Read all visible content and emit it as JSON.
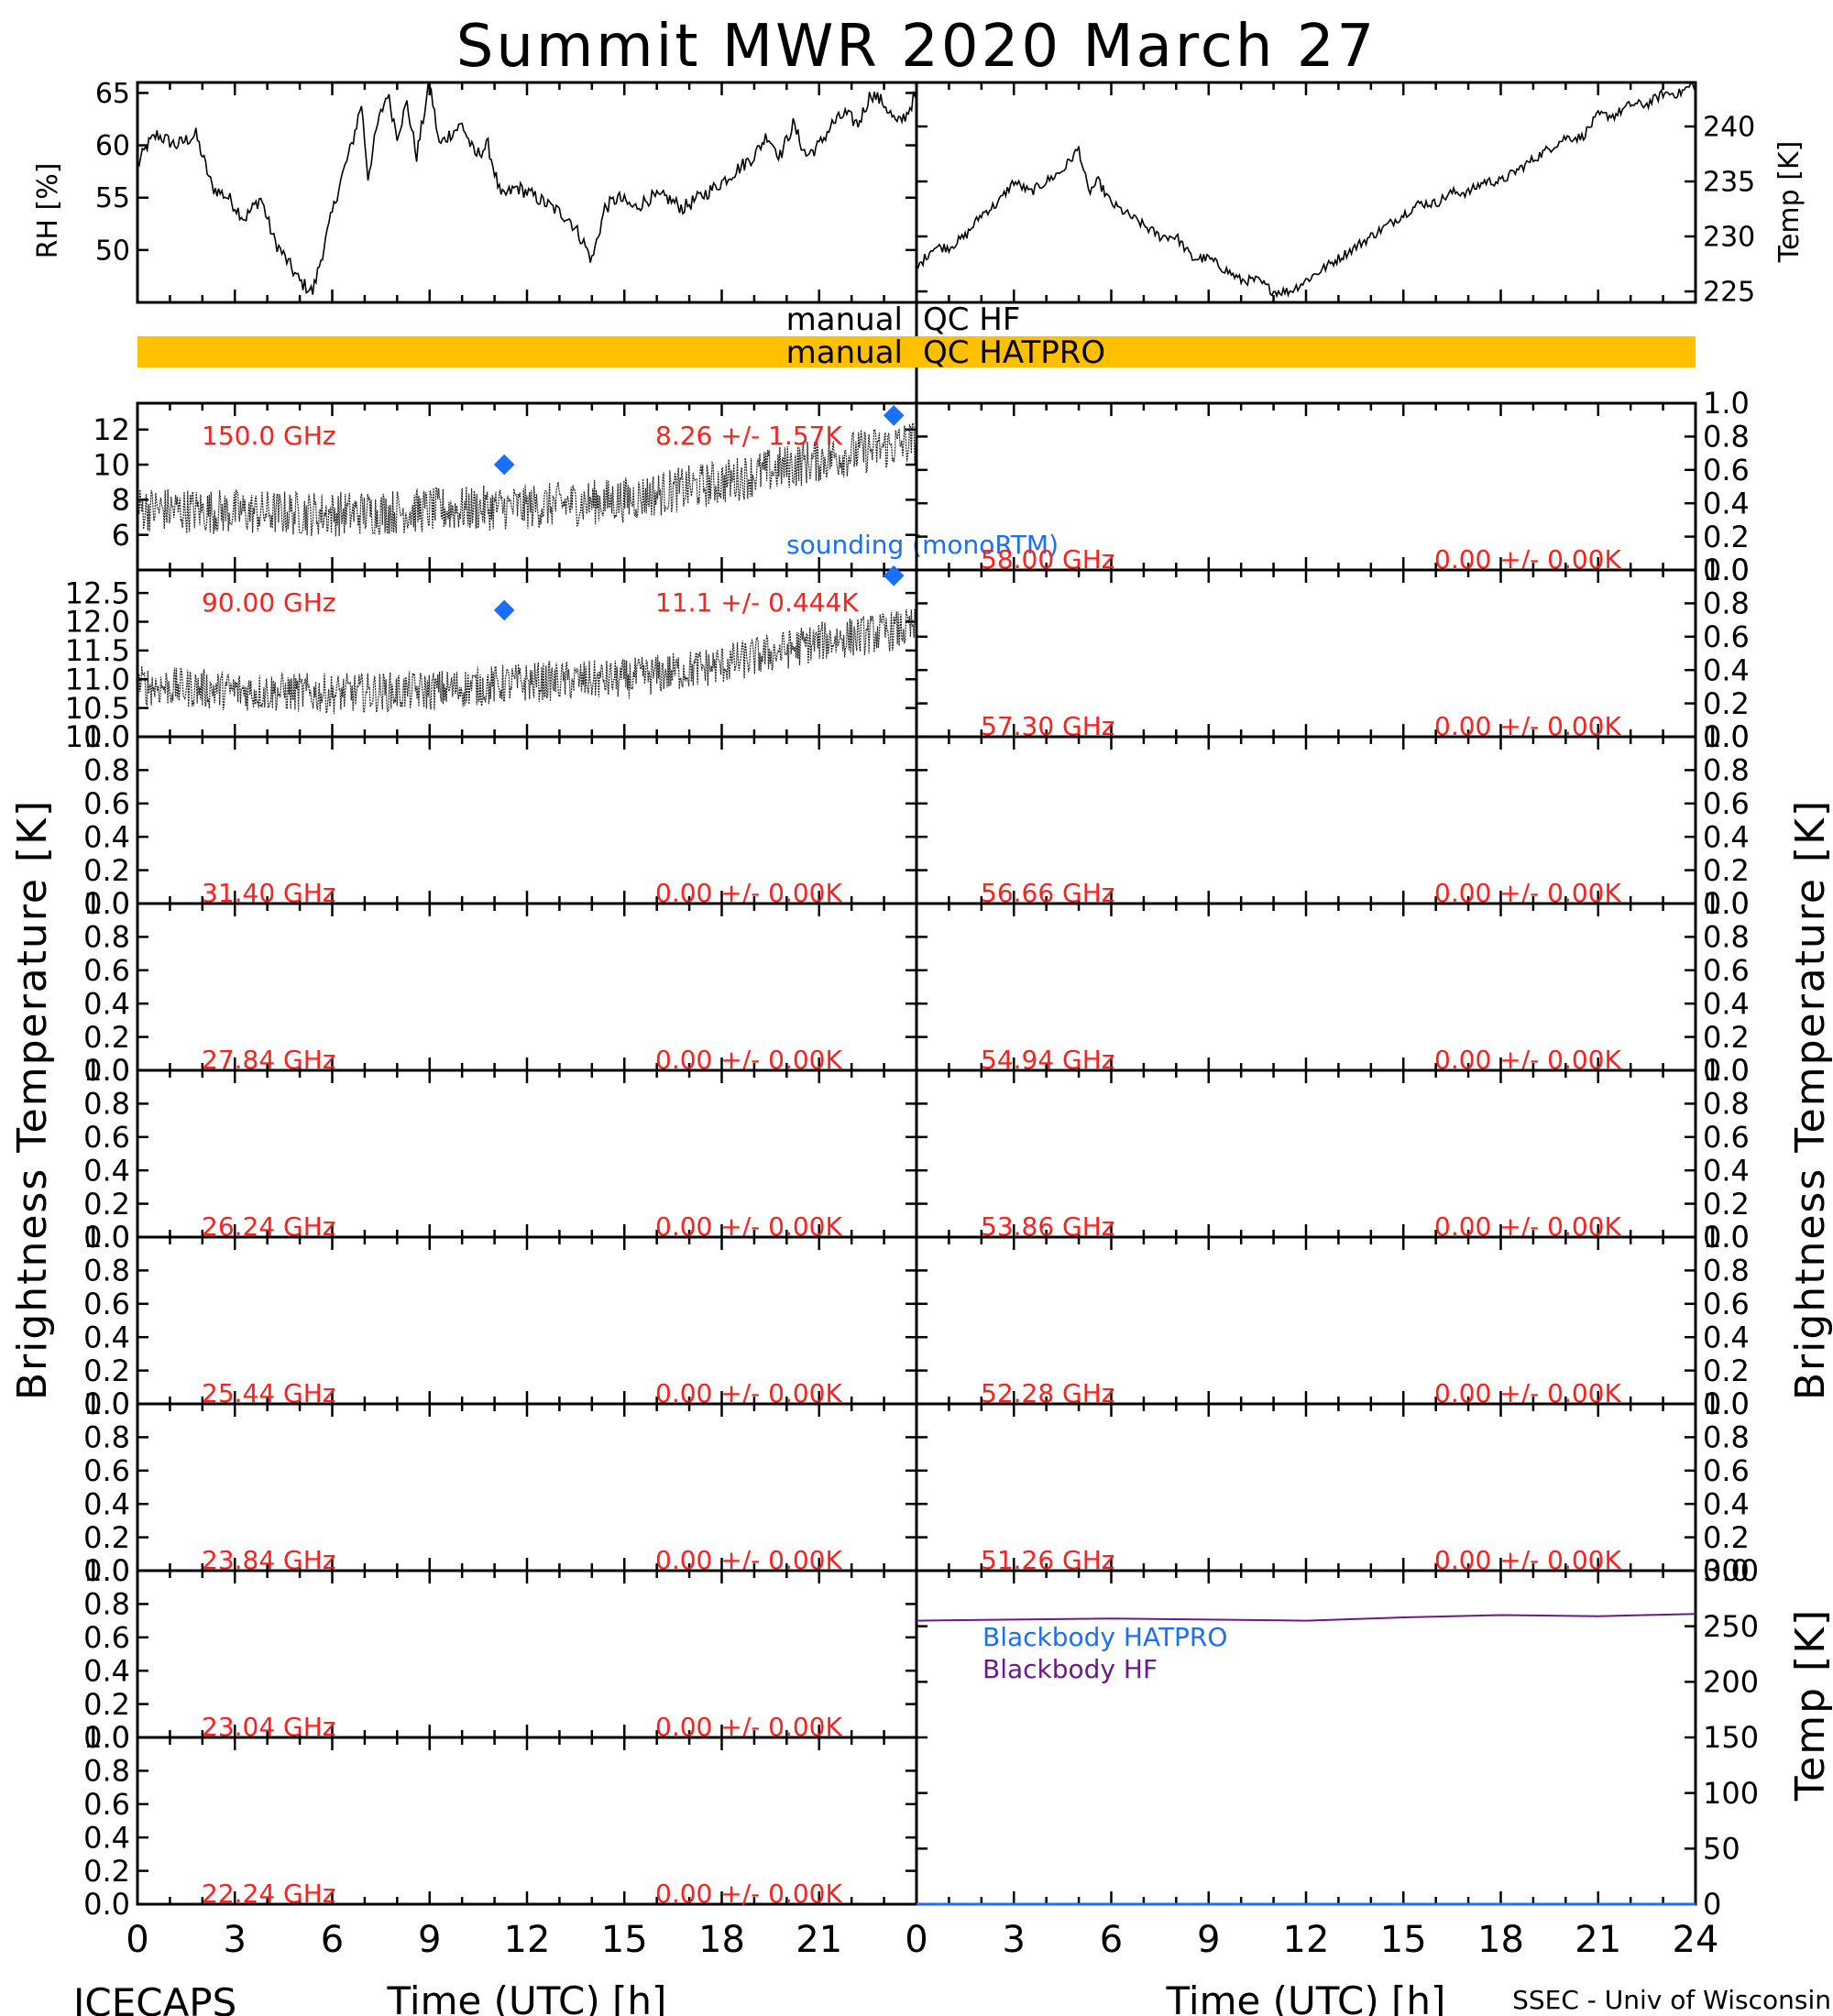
{
  "title": "Summit MWR 2020 March 27",
  "footer": {
    "left": "ICECAPS",
    "right": "SSEC - Univ of Wisconsin"
  },
  "x_axis": {
    "label": "Time (UTC) [h]",
    "ticks": [
      "0",
      "3",
      "6",
      "9",
      "12",
      "15",
      "18",
      "21",
      "24"
    ],
    "range": [
      0,
      24
    ]
  },
  "y_axis_labels": {
    "rh": "RH [%]",
    "temp_top": "Temp [K]",
    "bt_left": "Brightness Temperature [K]",
    "bt_right": "Brightness Temperature [K]",
    "temp_bottom": "Temp [K]"
  },
  "qc": {
    "hf": {
      "left": "manual",
      "right": "QC HF",
      "color": "#ffffff"
    },
    "hatpro": {
      "left": "manual",
      "right": "QC HATPRO",
      "color": "#ffc000"
    }
  },
  "sounding_label": "sounding (monoRTM)",
  "colors": {
    "red_label": "#ff2020",
    "sounding": "#1a6fff",
    "hatpro": "#1a6fff",
    "hf": "#6a1a8a",
    "qc_bar": "#ffc000"
  },
  "chart_data": [
    {
      "id": "rh",
      "type": "line",
      "title": "",
      "ylabel": "RH [%]",
      "xlim": [
        0,
        24
      ],
      "ylim": [
        45,
        66
      ],
      "yticks": [
        "50",
        "55",
        "60",
        "65"
      ],
      "x": [
        0,
        0.3,
        0.6,
        1.2,
        1.8,
        2.3,
        2.8,
        3.3,
        3.8,
        4.2,
        4.6,
        5.0,
        5.4,
        5.8,
        6.2,
        6.6,
        6.9,
        7.1,
        7.4,
        7.7,
        8.0,
        8.3,
        8.6,
        9.0,
        9.3,
        9.6,
        10.0,
        10.4,
        10.8,
        11.2,
        11.7,
        12.3,
        12.8,
        13.3,
        13.7,
        14.0,
        14.4,
        14.8,
        15.3,
        15.8,
        16.3,
        16.8,
        17.3,
        17.8,
        18.2,
        18.6,
        19.0,
        19.4,
        19.8,
        20.2,
        20.6,
        21.0,
        21.4,
        21.8,
        22.2,
        22.6,
        23.0,
        23.4,
        23.7,
        24.0
      ],
      "y": [
        58,
        60,
        61,
        60,
        61,
        56,
        55,
        53,
        55,
        51,
        49,
        47,
        46,
        51,
        56,
        60,
        64,
        57,
        62,
        65,
        61,
        64,
        59,
        66,
        60,
        61,
        62,
        59,
        60,
        55,
        56,
        55,
        54,
        53,
        51,
        49,
        54,
        55,
        54,
        55,
        55,
        54,
        55,
        56,
        57,
        58,
        59,
        61,
        59,
        62,
        59,
        60,
        62,
        63,
        62,
        65,
        64,
        62,
        63,
        65
      ]
    },
    {
      "id": "temp_top",
      "type": "line",
      "title": "",
      "ylabel": "Temp [K]",
      "xlim": [
        0,
        24
      ],
      "ylim": [
        224,
        244
      ],
      "yticks": [
        "225",
        "230",
        "235",
        "240"
      ],
      "x": [
        0,
        0.5,
        1.0,
        1.5,
        2.0,
        2.5,
        3.0,
        3.5,
        4.0,
        4.5,
        5.0,
        5.3,
        5.6,
        6.0,
        6.5,
        7.0,
        7.5,
        8.0,
        8.5,
        9.0,
        9.5,
        10.0,
        10.5,
        11.0,
        11.5,
        12.0,
        12.5,
        13.0,
        13.5,
        14.0,
        14.5,
        15.0,
        15.5,
        16.0,
        16.5,
        17.0,
        17.5,
        18.0,
        18.5,
        19.0,
        19.5,
        20.0,
        20.5,
        21.0,
        21.5,
        22.0,
        22.5,
        23.0,
        23.5,
        24.0
      ],
      "y": [
        227,
        229,
        229,
        230,
        232,
        233,
        235,
        234,
        235,
        236,
        238,
        234,
        235,
        233,
        232,
        231,
        230,
        230,
        228,
        228,
        227,
        226,
        226,
        225,
        225,
        226,
        227,
        228,
        229,
        230,
        231,
        232,
        233,
        233,
        234,
        234,
        235,
        235,
        236,
        237,
        238,
        239,
        239,
        241,
        241,
        242,
        242,
        243,
        243,
        244
      ]
    },
    {
      "id": "bt_150",
      "type": "line",
      "frequency": "150.0 GHz",
      "stats": "8.26 +/- 1.57K",
      "ylim": [
        4,
        13.5
      ],
      "yticks": [
        "6",
        "8",
        "10",
        "12"
      ],
      "base_x": [
        0,
        3,
        6,
        9,
        12,
        15,
        18,
        21,
        24
      ],
      "base_y": [
        7.5,
        7.3,
        7.2,
        7.4,
        7.6,
        8.0,
        9.0,
        10.3,
        11.3
      ],
      "noise": 1.3,
      "sounding_x": [
        11.3,
        23.3
      ],
      "sounding_y": [
        10.0,
        12.8
      ]
    },
    {
      "id": "bt_90",
      "type": "line",
      "frequency": "90.00 GHz",
      "stats": "11.1 +/- 0.444K",
      "ylim": [
        10.0,
        12.9
      ],
      "yticks": [
        "10.0",
        "10.5",
        "11.0",
        "11.5",
        "12.0",
        "12.5"
      ],
      "base_x": [
        0,
        3,
        6,
        9,
        12,
        15,
        18,
        21,
        24
      ],
      "base_y": [
        10.9,
        10.8,
        10.75,
        10.8,
        10.95,
        11.0,
        11.25,
        11.65,
        11.9
      ],
      "noise": 0.35,
      "sounding_x": [
        11.3,
        23.3
      ],
      "sounding_y": [
        12.2,
        12.8
      ]
    },
    {
      "id": "bt_31",
      "type": "line",
      "frequency": "31.40 GHz",
      "stats": "0.00 +/- 0.00K",
      "values": []
    },
    {
      "id": "bt_27",
      "type": "line",
      "frequency": "27.84 GHz",
      "stats": "0.00 +/- 0.00K",
      "values": []
    },
    {
      "id": "bt_26",
      "type": "line",
      "frequency": "26.24 GHz",
      "stats": "0.00 +/- 0.00K",
      "values": []
    },
    {
      "id": "bt_25",
      "type": "line",
      "frequency": "25.44 GHz",
      "stats": "0.00 +/- 0.00K",
      "values": []
    },
    {
      "id": "bt_23_84",
      "type": "line",
      "frequency": "23.84 GHz",
      "stats": "0.00 +/- 0.00K",
      "values": []
    },
    {
      "id": "bt_23_04",
      "type": "line",
      "frequency": "23.04 GHz",
      "stats": "0.00 +/- 0.00K",
      "values": []
    },
    {
      "id": "bt_22",
      "type": "line",
      "frequency": "22.24 GHz",
      "stats": "0.00 +/- 0.00K",
      "values": []
    },
    {
      "id": "bt_58",
      "type": "line",
      "frequency": "58.00 GHz",
      "stats": "0.00 +/- 0.00K",
      "values": []
    },
    {
      "id": "bt_57",
      "type": "line",
      "frequency": "57.30 GHz",
      "stats": "0.00 +/- 0.00K",
      "values": []
    },
    {
      "id": "bt_56",
      "type": "line",
      "frequency": "56.66 GHz",
      "stats": "0.00 +/- 0.00K",
      "values": []
    },
    {
      "id": "bt_54",
      "type": "line",
      "frequency": "54.94 GHz",
      "stats": "0.00 +/- 0.00K",
      "values": []
    },
    {
      "id": "bt_53",
      "type": "line",
      "frequency": "53.86 GHz",
      "stats": "0.00 +/- 0.00K",
      "values": []
    },
    {
      "id": "bt_52",
      "type": "line",
      "frequency": "52.28 GHz",
      "stats": "0.00 +/- 0.00K",
      "values": []
    },
    {
      "id": "bt_51",
      "type": "line",
      "frequency": "51.26 GHz",
      "stats": "0.00 +/- 0.00K",
      "values": []
    },
    {
      "id": "blackbody",
      "type": "line",
      "ylabel": "Temp [K]",
      "xlim": [
        0,
        24
      ],
      "ylim": [
        0,
        300
      ],
      "yticks": [
        "0",
        "50",
        "100",
        "150",
        "200",
        "250",
        "300"
      ],
      "legend": [
        "Blackbody HATPRO",
        "Blackbody HF"
      ],
      "series": [
        {
          "name": "Blackbody HF",
          "x": [
            0,
            3,
            6,
            9,
            12,
            15,
            18,
            21,
            24
          ],
          "y": [
            255,
            256,
            257,
            256,
            255,
            258,
            260,
            259,
            261
          ]
        },
        {
          "name": "Blackbody HATPRO",
          "x": [
            0,
            24
          ],
          "y": [
            0,
            0
          ]
        }
      ]
    }
  ]
}
